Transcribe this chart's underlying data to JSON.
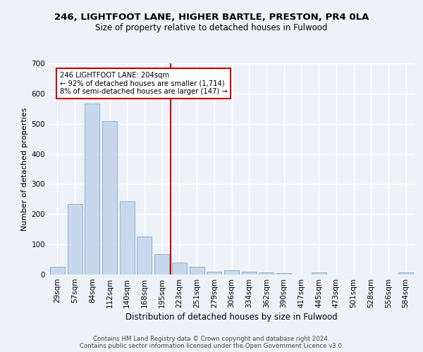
{
  "title1": "246, LIGHTFOOT LANE, HIGHER BARTLE, PRESTON, PR4 0LA",
  "title2": "Size of property relative to detached houses in Fulwood",
  "xlabel": "Distribution of detached houses by size in Fulwood",
  "ylabel": "Number of detached properties",
  "bar_labels": [
    "29sqm",
    "57sqm",
    "84sqm",
    "112sqm",
    "140sqm",
    "168sqm",
    "195sqm",
    "223sqm",
    "251sqm",
    "279sqm",
    "306sqm",
    "334sqm",
    "362sqm",
    "390sqm",
    "417sqm",
    "445sqm",
    "473sqm",
    "501sqm",
    "528sqm",
    "556sqm",
    "584sqm"
  ],
  "bar_values": [
    25,
    233,
    568,
    508,
    242,
    125,
    68,
    40,
    26,
    10,
    14,
    10,
    8,
    5,
    0,
    8,
    0,
    0,
    0,
    0,
    6
  ],
  "bar_color": "#c8d8ec",
  "bar_edge_color": "#7aaac8",
  "vline_color": "#cc0000",
  "annotation_text": "246 LIGHTFOOT LANE: 204sqm\n← 92% of detached houses are smaller (1,714)\n8% of semi-detached houses are larger (147) →",
  "annotation_box_color": "#ffffff",
  "annotation_box_edge": "#cc0000",
  "ylim": [
    0,
    700
  ],
  "yticks": [
    0,
    100,
    200,
    300,
    400,
    500,
    600,
    700
  ],
  "footer1": "Contains HM Land Registry data © Crown copyright and database right 2024.",
  "footer2": "Contains public sector information licensed under the Open Government Licence v3.0.",
  "bg_color": "#eef2f8",
  "grid_color": "#ffffff",
  "title1_fontsize": 9.5,
  "title2_fontsize": 8.5,
  "ylabel_fontsize": 8,
  "xlabel_fontsize": 8.5,
  "tick_fontsize": 7.5,
  "footer_fontsize": 6.2
}
